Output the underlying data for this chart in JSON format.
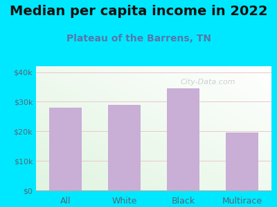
{
  "title": "Median per capita income in 2022",
  "subtitle": "Plateau of the Barrens, TN",
  "categories": [
    "All",
    "White",
    "Black",
    "Multirace"
  ],
  "values": [
    28000,
    29000,
    34500,
    19500
  ],
  "bar_color": "#c9aed6",
  "title_fontsize": 14,
  "subtitle_fontsize": 10,
  "title_color": "#111111",
  "subtitle_color": "#5577aa",
  "tick_color": "#556677",
  "bg_outer": "#00e8ff",
  "ylim": [
    0,
    42000
  ],
  "yticks": [
    0,
    10000,
    20000,
    30000,
    40000
  ],
  "ytick_labels": [
    "$0",
    "$10k",
    "$20k",
    "$30k",
    "$40k"
  ],
  "watermark": "City-Data.com"
}
